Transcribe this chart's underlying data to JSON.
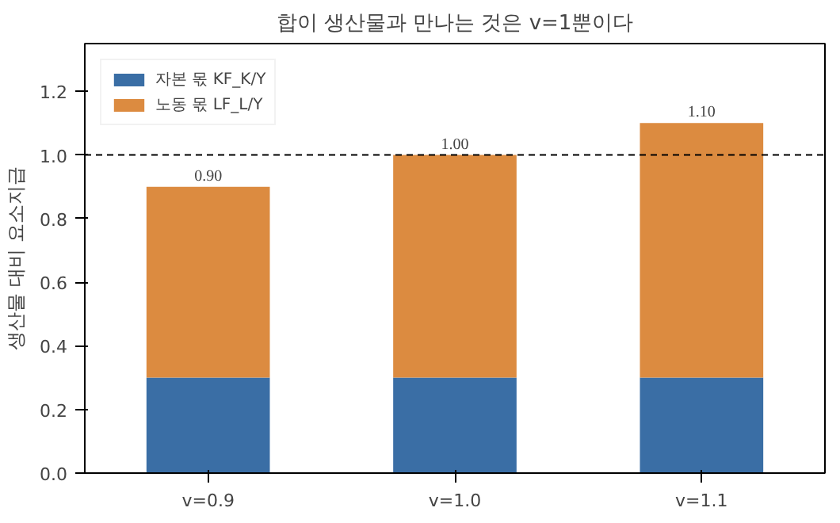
{
  "chart_data": {
    "type": "bar",
    "title": "합이 생산물과 만나는 것은 v=1뿐이다",
    "ylabel": "생산물 대비 요소지급",
    "categories": [
      "v=0.9",
      "v=1.0",
      "v=1.1"
    ],
    "stacked": true,
    "series": [
      {
        "name": "자본 몫 KF_K/Y",
        "color": "#3a6ea5",
        "values": [
          0.3,
          0.3,
          0.3
        ]
      },
      {
        "name": "노동 몫 LF_L/Y",
        "color": "#dc8b40",
        "values": [
          0.6,
          0.7,
          0.8
        ]
      }
    ],
    "totals": [
      "0.90",
      "1.00",
      "1.10"
    ],
    "ylim": [
      0,
      1.35
    ],
    "yticks": [
      "0.0",
      0.2,
      0.4,
      0.6,
      0.8,
      "1.0",
      1.2
    ],
    "ref_lines": [
      {
        "axis": "y",
        "value": 1.0,
        "color": "#000000",
        "line_style": "dashed"
      }
    ],
    "grid": false,
    "legend": "top left"
  }
}
